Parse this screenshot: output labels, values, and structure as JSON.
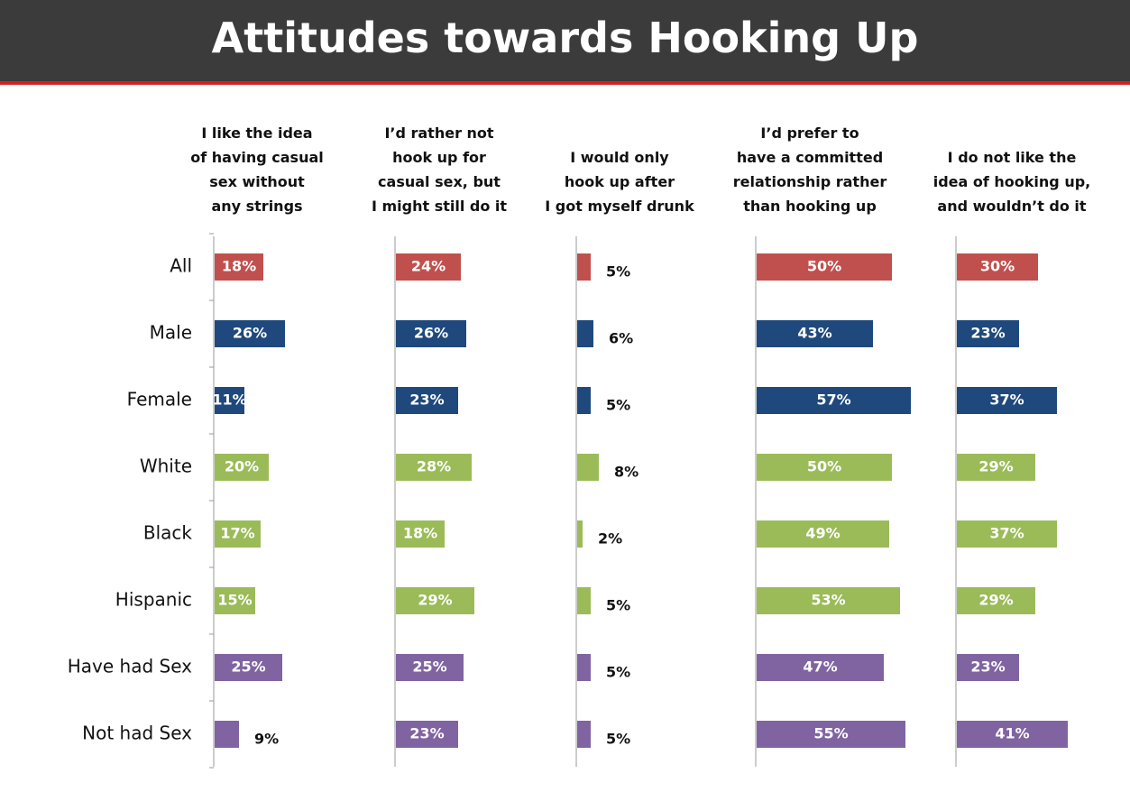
{
  "chart_data": {
    "type": "bar",
    "orientation": "horizontal",
    "layout": "small-multiples",
    "title": "Attitudes towards Hooking Up",
    "categories": [
      "All",
      "Male",
      "Female",
      "White",
      "Black",
      "Hispanic",
      "Have had Sex",
      "Not had Sex"
    ],
    "category_colors": [
      "#c0504d",
      "#1f497d",
      "#1f497d",
      "#9bbb59",
      "#9bbb59",
      "#9bbb59",
      "#8064a2",
      "#8064a2"
    ],
    "series": [
      {
        "name": "I like the idea\nof having casual\nsex without\nany strings",
        "values": [
          18,
          26,
          11,
          20,
          17,
          15,
          25,
          9
        ],
        "value_labels": [
          "18%",
          "26%",
          "11%",
          "20%",
          "17%",
          "15%",
          "25%",
          "9%"
        ]
      },
      {
        "name": "I’d rather not\nhook up for\ncasual sex, but\nI might still do it",
        "values": [
          24,
          26,
          23,
          28,
          18,
          29,
          25,
          23
        ],
        "value_labels": [
          "24%",
          "26%",
          "23%",
          "28%",
          "18%",
          "29%",
          "25%",
          "23%"
        ]
      },
      {
        "name": "I would only\nhook up after\nI got myself drunk",
        "values": [
          5,
          6,
          5,
          8,
          2,
          5,
          5,
          5
        ],
        "value_labels": [
          "5%",
          "6%",
          "5%",
          "8%",
          "2%",
          "5%",
          "5%",
          "5%"
        ]
      },
      {
        "name": "I’d prefer to\nhave a committed\nrelationship rather\nthan hooking up",
        "values": [
          50,
          43,
          57,
          50,
          49,
          53,
          47,
          55
        ],
        "value_labels": [
          "50%",
          "43%",
          "57%",
          "50%",
          "49%",
          "53%",
          "47%",
          "55%"
        ]
      },
      {
        "name": "I do not like the\nidea of hooking up,\nand wouldn’t do it",
        "values": [
          30,
          23,
          37,
          29,
          37,
          29,
          23,
          41
        ],
        "value_labels": [
          "30%",
          "23%",
          "37%",
          "29%",
          "37%",
          "29%",
          "23%",
          "41%"
        ]
      }
    ]
  }
}
